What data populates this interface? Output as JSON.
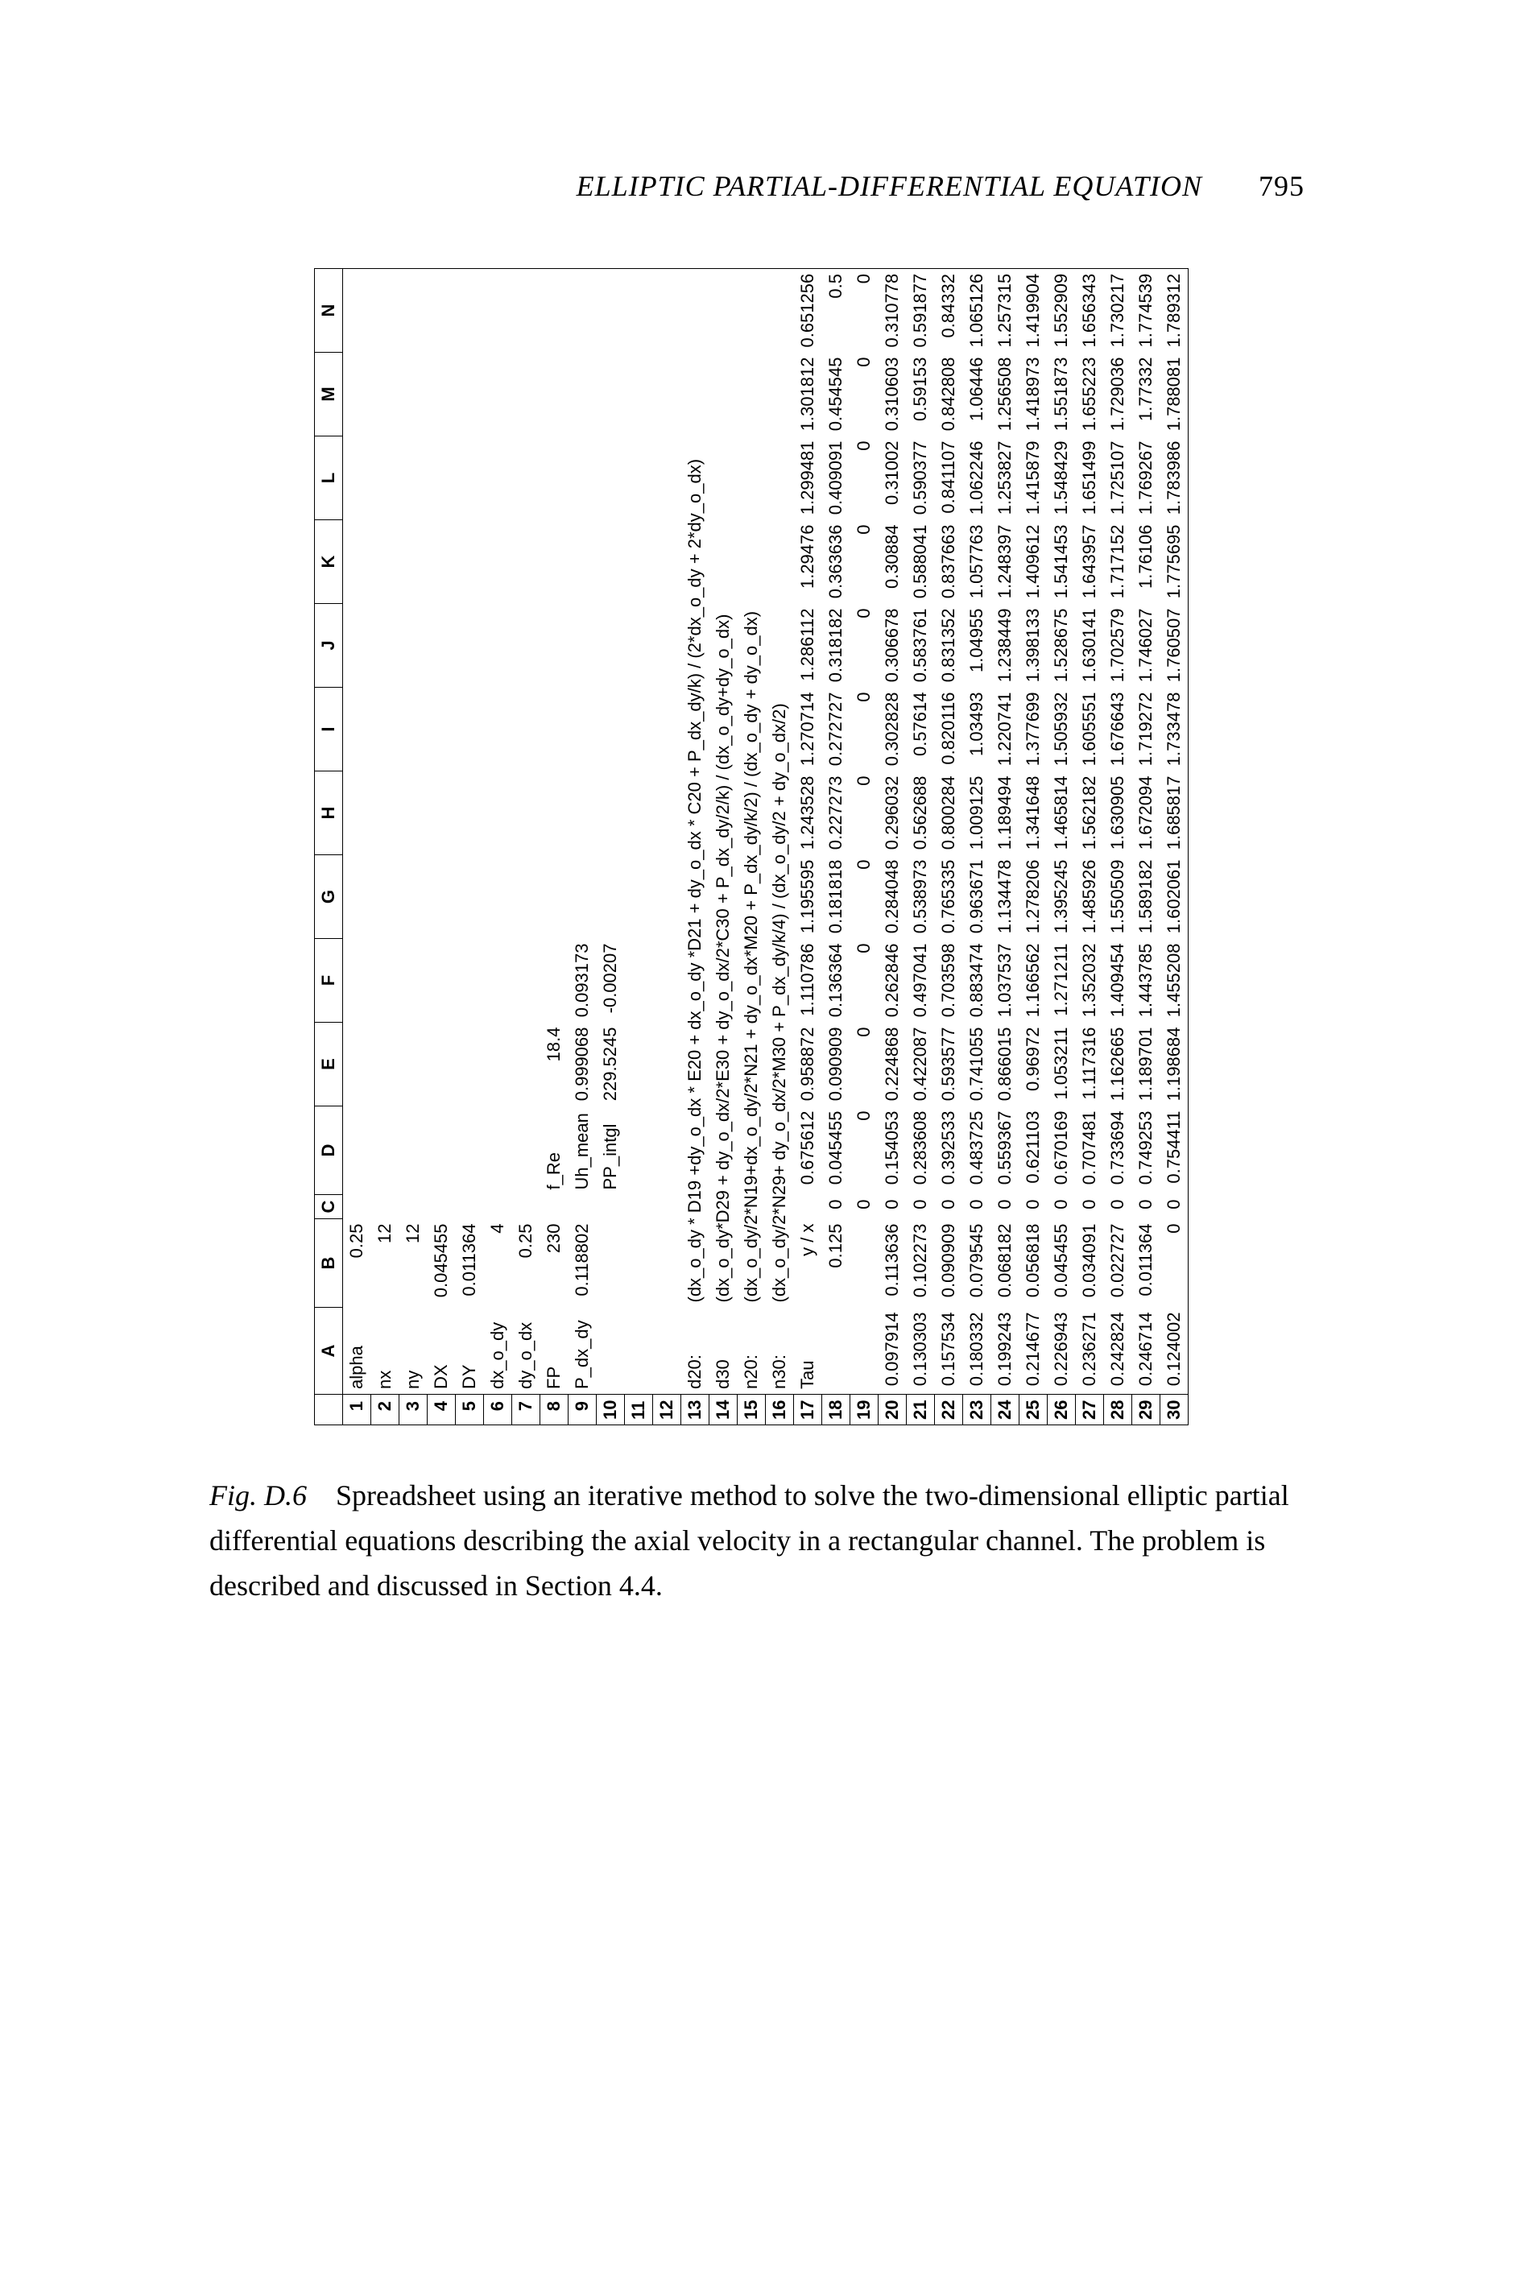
{
  "header": {
    "title": "ELLIPTIC PARTIAL-DIFFERENTIAL EQUATION",
    "page": "795"
  },
  "caption": {
    "fig_label": "Fig. D.6",
    "text": "Spreadsheet using an iterative method to solve the two-dimensional elliptic partial differential equations describing the axial velocity in a rectangular channel. The problem is described and discussed in Section 4.4."
  },
  "spreadsheet": {
    "columns": [
      "A",
      "B",
      "C",
      "D",
      "E",
      "F",
      "G",
      "H",
      "I",
      "J",
      "K",
      "L",
      "M",
      "N"
    ],
    "params": [
      {
        "row": 1,
        "label": "alpha",
        "b": "0.25"
      },
      {
        "row": 2,
        "label": "nx",
        "b": "12"
      },
      {
        "row": 3,
        "label": "ny",
        "b": "12"
      },
      {
        "row": 4,
        "label": "DX",
        "b": "0.045455"
      },
      {
        "row": 5,
        "label": "DY",
        "b": "0.011364"
      },
      {
        "row": 6,
        "label": "dx_o_dy",
        "b": "4"
      },
      {
        "row": 7,
        "label": "dy_o_dx",
        "b": "0.25"
      },
      {
        "row": 8,
        "label": "FP",
        "b": "230",
        "d_lbl": "f_Re",
        "e": "18.4"
      },
      {
        "row": 9,
        "label": "P_dx_dy",
        "b": "0.118802",
        "d_lbl": "Uh_mean",
        "e": "0.999068",
        "f": "0.093173"
      },
      {
        "row": 10,
        "label": "",
        "b": "",
        "d_lbl": "PP_intgl",
        "e": "229.5245",
        "f": "-0.00207"
      },
      {
        "row": 11,
        "label": ""
      },
      {
        "row": 12,
        "label": ""
      }
    ],
    "formulas": [
      {
        "row": 13,
        "a": "d20:",
        "text": "(dx_o_dy * D19 +dy_o_dx * E20 + dx_o_dy *D21 + dy_o_dx * C20 + P_dx_dy/k) / (2*dx_o_dy + 2*dy_o_dx)"
      },
      {
        "row": 14,
        "a": "d30",
        "text": "(dx_o_dy*D29 + dy_o_dx/2*E30 + dy_o_dx/2*C30 + P_dx_dy/2/k) / (dx_o_dy+dy_o_dx)"
      },
      {
        "row": 15,
        "a": "n20:",
        "text": "(dx_o_dy/2*N19+dx_o_dy/2*N21 + dy_o_dx*M20 + P_dx_dy/k/2) / (dx_o_dy + dy_o_dx)"
      },
      {
        "row": 16,
        "a": "n30:",
        "text": "(dx_o_dy/2*N29+ dy_o_dx/2*M30 + P_dx_dy/k/4) / (dx_o_dy/2 + dy_o_dx/2)"
      }
    ],
    "grid_header": {
      "row": 17,
      "a": "Tau",
      "b": "y  /  x",
      "d": "0.675612",
      "e": "0.958872",
      "f": "1.110786",
      "g": "1.195595",
      "h": "1.243528",
      "i": "1.270714",
      "j": "1.286112",
      "k": "1.29476",
      "l": "1.299481",
      "m": "1.301812",
      "n": "0.651256"
    },
    "grid_sub": {
      "row": 18,
      "b": "0.125",
      "c": "0",
      "d": "0.045455",
      "e": "0.090909",
      "f": "0.136364",
      "g": "0.181818",
      "h": "0.227273",
      "i": "0.272727",
      "j": "0.318182",
      "k": "0.363636",
      "l": "0.409091",
      "m": "0.454545",
      "n": "0.5"
    },
    "grid_zero": {
      "row": 19,
      "c": "0",
      "d": "0",
      "e": "0",
      "f": "0",
      "g": "0",
      "h": "0",
      "i": "0",
      "j": "0",
      "k": "0",
      "l": "0",
      "m": "0",
      "n": "0"
    },
    "grid": [
      {
        "row": 20,
        "a": "0.097914",
        "b": "0.113636",
        "c": "0",
        "d": "0.154053",
        "e": "0.224868",
        "f": "0.262846",
        "g": "0.284048",
        "h": "0.296032",
        "i": "0.302828",
        "j": "0.306678",
        "k": "0.30884",
        "l": "0.31002",
        "m": "0.310603",
        "n": "0.310778"
      },
      {
        "row": 21,
        "a": "0.130303",
        "b": "0.102273",
        "c": "0",
        "d": "0.283608",
        "e": "0.422087",
        "f": "0.497041",
        "g": "0.538973",
        "h": "0.562688",
        "i": "0.57614",
        "j": "0.583761",
        "k": "0.588041",
        "l": "0.590377",
        "m": "0.59153",
        "n": "0.591877"
      },
      {
        "row": 22,
        "a": "0.157534",
        "b": "0.090909",
        "c": "0",
        "d": "0.392533",
        "e": "0.593577",
        "f": "0.703598",
        "g": "0.765335",
        "h": "0.800284",
        "i": "0.820116",
        "j": "0.831352",
        "k": "0.837663",
        "l": "0.841107",
        "m": "0.842808",
        "n": "0.84332"
      },
      {
        "row": 23,
        "a": "0.180332",
        "b": "0.079545",
        "c": "0",
        "d": "0.483725",
        "e": "0.741055",
        "f": "0.883474",
        "g": "0.963671",
        "h": "1.009125",
        "i": "1.03493",
        "j": "1.04955",
        "k": "1.057763",
        "l": "1.062246",
        "m": "1.06446",
        "n": "1.065126"
      },
      {
        "row": 24,
        "a": "0.199243",
        "b": "0.068182",
        "c": "0",
        "d": "0.559367",
        "e": "0.866015",
        "f": "1.037537",
        "g": "1.134478",
        "h": "1.189494",
        "i": "1.220741",
        "j": "1.238449",
        "k": "1.248397",
        "l": "1.253827",
        "m": "1.256508",
        "n": "1.257315"
      },
      {
        "row": 25,
        "a": "0.214677",
        "b": "0.056818",
        "c": "0",
        "d": "0.621103",
        "e": "0.96972",
        "f": "1.166562",
        "g": "1.278206",
        "h": "1.341648",
        "i": "1.377699",
        "j": "1.398133",
        "k": "1.409612",
        "l": "1.415879",
        "m": "1.418973",
        "n": "1.419904"
      },
      {
        "row": 26,
        "a": "0.226943",
        "b": "0.045455",
        "c": "0",
        "d": "0.670169",
        "e": "1.053211",
        "f": "1.271211",
        "g": "1.395245",
        "h": "1.465814",
        "i": "1.505932",
        "j": "1.528675",
        "k": "1.541453",
        "l": "1.548429",
        "m": "1.551873",
        "n": "1.552909"
      },
      {
        "row": 27,
        "a": "0.236271",
        "b": "0.034091",
        "c": "0",
        "d": "0.707481",
        "e": "1.117316",
        "f": "1.352032",
        "g": "1.485926",
        "h": "1.562182",
        "i": "1.605551",
        "j": "1.630141",
        "k": "1.643957",
        "l": "1.651499",
        "m": "1.655223",
        "n": "1.656343"
      },
      {
        "row": 28,
        "a": "0.242824",
        "b": "0.022727",
        "c": "0",
        "d": "0.733694",
        "e": "1.162665",
        "f": "1.409454",
        "g": "1.550509",
        "h": "1.630905",
        "i": "1.676643",
        "j": "1.702579",
        "k": "1.717152",
        "l": "1.725107",
        "m": "1.729036",
        "n": "1.730217"
      },
      {
        "row": 29,
        "a": "0.246714",
        "b": "0.011364",
        "c": "0",
        "d": "0.749253",
        "e": "1.189701",
        "f": "1.443785",
        "g": "1.589182",
        "h": "1.672094",
        "i": "1.719272",
        "j": "1.746027",
        "k": "1.76106",
        "l": "1.769267",
        "m": "1.77332",
        "n": "1.774539"
      },
      {
        "row": 30,
        "a": "0.124002",
        "b": "0",
        "c": "0",
        "d": "0.754411",
        "e": "1.198684",
        "f": "1.455208",
        "g": "1.602061",
        "h": "1.685817",
        "i": "1.733478",
        "j": "1.760507",
        "k": "1.775695",
        "l": "1.783986",
        "m": "1.788081",
        "n": "1.789312"
      }
    ]
  }
}
